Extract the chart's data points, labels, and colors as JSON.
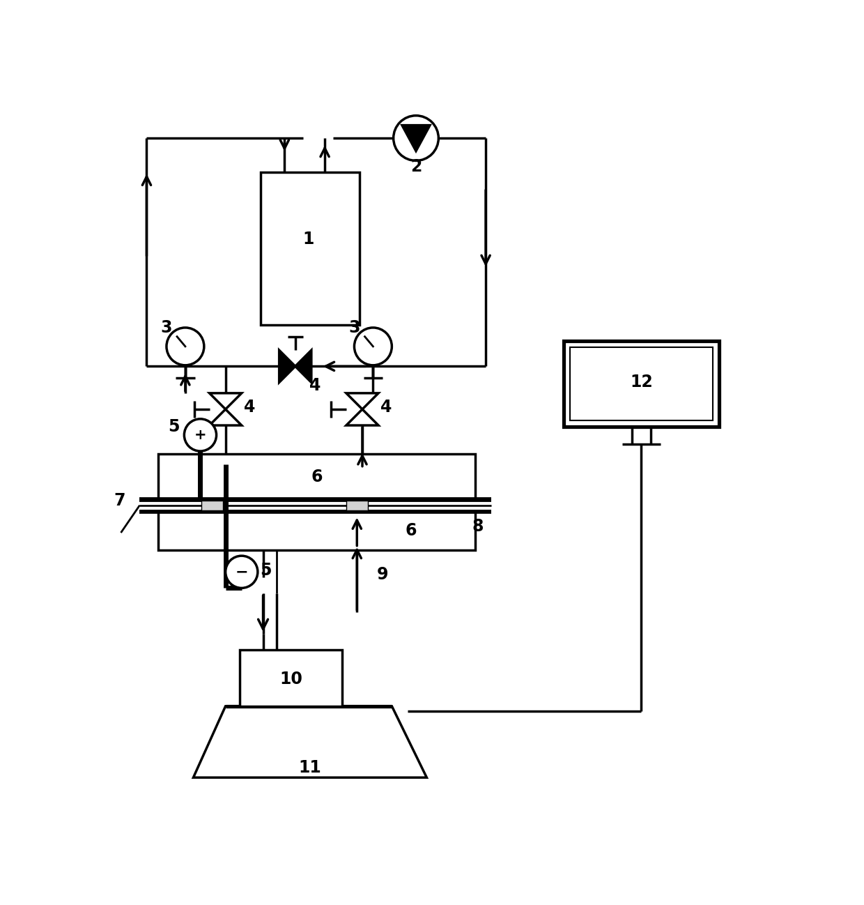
{
  "bg_color": "#ffffff",
  "lc": "#000000",
  "lw": 2.5,
  "fw": "bold",
  "fs": 17,
  "fig_w": 12.4,
  "fig_h": 12.98,
  "xmax": 12.4,
  "ymax": 12.98
}
